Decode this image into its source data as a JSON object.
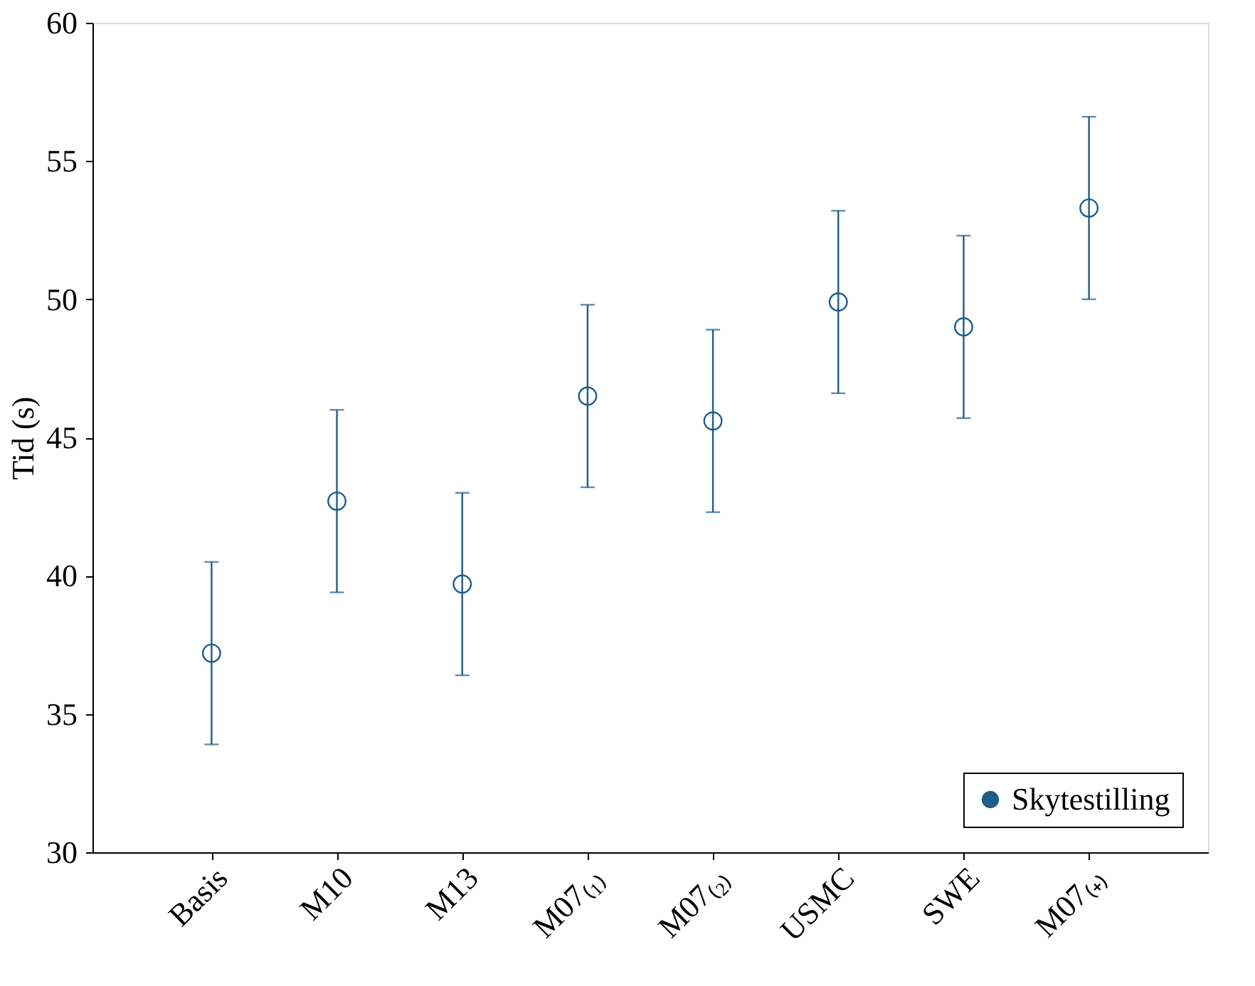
{
  "chart_data": {
    "type": "scatter",
    "ylabel": "Tid (s)",
    "categories": [
      "Basis",
      "M10",
      "M13",
      "M07₍₁₎",
      "M07₍₂₎",
      "USMC",
      "SWE",
      "M07₍₊₎"
    ],
    "series": [
      {
        "name": "Skytestilling",
        "color": "#1f5c8c",
        "values": [
          37.2,
          42.7,
          39.7,
          46.5,
          45.6,
          49.9,
          49.0,
          53.3
        ],
        "errors": [
          3.3,
          3.3,
          3.3,
          3.3,
          3.3,
          3.3,
          3.3,
          3.3
        ]
      }
    ],
    "ylim": [
      30,
      60
    ],
    "yticks": [
      30,
      35,
      40,
      45,
      50,
      55,
      60
    ],
    "grid": false,
    "legend": "bottom right",
    "marker": "circle"
  }
}
